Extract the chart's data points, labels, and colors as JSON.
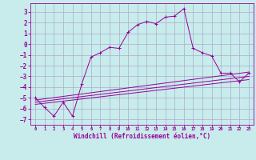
{
  "xlabel": "Windchill (Refroidissement éolien,°C)",
  "bg_color": "#c8ecec",
  "line_color": "#990099",
  "grid_color": "#aaaacc",
  "xlim": [
    -0.5,
    23.5
  ],
  "ylim": [
    -7.5,
    3.8
  ],
  "xticks": [
    0,
    1,
    2,
    3,
    4,
    5,
    6,
    7,
    8,
    9,
    10,
    11,
    12,
    13,
    14,
    15,
    16,
    17,
    18,
    19,
    20,
    21,
    22,
    23
  ],
  "yticks": [
    -7,
    -6,
    -5,
    -4,
    -3,
    -2,
    -1,
    0,
    1,
    2,
    3
  ],
  "series": [
    [
      0,
      -5.0
    ],
    [
      1,
      -5.9
    ],
    [
      2,
      -6.7
    ],
    [
      3,
      -5.4
    ],
    [
      4,
      -6.7
    ],
    [
      5,
      -3.7
    ],
    [
      6,
      -1.2
    ],
    [
      7,
      -0.8
    ],
    [
      8,
      -0.3
    ],
    [
      9,
      -0.4
    ],
    [
      10,
      1.1
    ],
    [
      11,
      1.8
    ],
    [
      12,
      2.1
    ],
    [
      13,
      1.9
    ],
    [
      14,
      2.5
    ],
    [
      15,
      2.6
    ],
    [
      16,
      3.3
    ],
    [
      17,
      -0.4
    ],
    [
      18,
      -0.8
    ],
    [
      19,
      -1.1
    ],
    [
      20,
      -2.7
    ],
    [
      21,
      -2.7
    ],
    [
      22,
      -3.5
    ],
    [
      23,
      -2.7
    ]
  ],
  "line2": [
    [
      0,
      -5.2
    ],
    [
      23,
      -2.6
    ]
  ],
  "line3": [
    [
      0,
      -5.4
    ],
    [
      23,
      -3.0
    ]
  ],
  "line4": [
    [
      0,
      -5.6
    ],
    [
      23,
      -3.3
    ]
  ]
}
